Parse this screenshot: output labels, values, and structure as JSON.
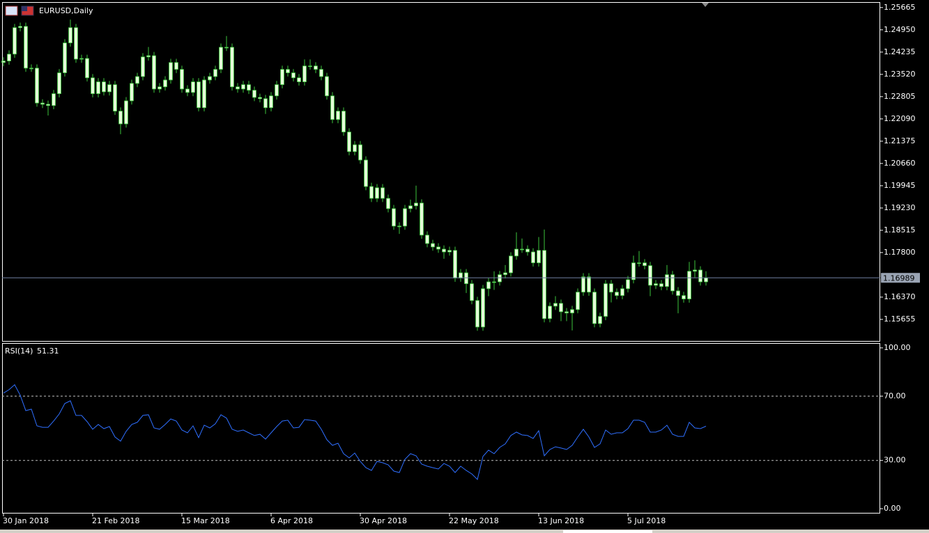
{
  "chart_data": [
    {
      "type": "candlestick",
      "title": "EURUSD,Daily",
      "color": "#3cc43c",
      "body_color": "#e4ffd8",
      "xlim": [
        -0.25,
        157.25
      ],
      "xticks": [
        {
          "value": 0,
          "label": "30 Jan 2018"
        },
        {
          "value": 16,
          "label": "21 Feb 2018"
        },
        {
          "value": 32,
          "label": "15 Mar 2018"
        },
        {
          "value": 48,
          "label": "6 Apr 2018"
        },
        {
          "value": 64,
          "label": "30 Apr 2018"
        },
        {
          "value": 80,
          "label": "22 May 2018"
        },
        {
          "value": 96,
          "label": "13 Jun 2018"
        },
        {
          "value": 112,
          "label": "5 Jul 2018"
        }
      ],
      "ylim": [
        1.1494,
        1.2584
      ],
      "yticks": [
        1.25665,
        {
          "value": 1.2495,
          "label": "1.24950"
        },
        1.24235,
        {
          "value": 1.2352,
          "label": "1.23520"
        },
        1.22805,
        {
          "value": 1.2209,
          "label": "1.22090"
        },
        1.21375,
        {
          "value": 1.2066,
          "label": "1.20660"
        },
        1.19945,
        {
          "value": 1.1923,
          "label": "1.19230"
        },
        1.18515,
        {
          "value": 1.178,
          "label": "1.17800"
        },
        {
          "value": 1.1637,
          "label": "1.16370"
        },
        1.15655
      ],
      "open": [
        1.239,
        1.2395,
        1.2417,
        1.2502,
        1.2506,
        1.2372,
        1.2372,
        1.226,
        1.2256,
        1.2252,
        1.229,
        1.2357,
        1.2453,
        1.2502,
        1.2401,
        1.2403,
        1.2341,
        1.229,
        1.2328,
        1.2296,
        1.2319,
        1.2234,
        1.2193,
        1.2267,
        1.2323,
        1.2345,
        1.2408,
        1.2412,
        1.2305,
        1.2312,
        1.2334,
        1.239,
        1.2368,
        1.2305,
        1.2294,
        1.2328,
        1.2245,
        1.2334,
        1.2345,
        1.2368,
        1.2439,
        1.2439,
        1.2312,
        1.2305,
        1.2319,
        1.2301,
        1.2278,
        1.2274,
        1.2245,
        1.2283,
        1.2319,
        1.2368,
        1.2357,
        1.2341,
        1.2328,
        1.2379,
        1.2379,
        1.2368,
        1.2345,
        1.2283,
        1.2207,
        1.2234,
        1.2167,
        1.2104,
        1.2126,
        1.2077,
        1.1992,
        1.1954,
        1.1988,
        1.1954,
        1.1921,
        1.1865,
        1.1865,
        1.1921,
        1.193,
        1.1939,
        1.1836,
        1.1809,
        1.1798,
        1.1791,
        1.1782,
        1.1787,
        1.1698,
        1.1715,
        1.168,
        1.1626,
        1.1541,
        1.1664,
        1.1686,
        1.1686,
        1.1709,
        1.1715,
        1.1769,
        1.1791,
        1.1791,
        1.1782,
        1.1747,
        1.1787,
        1.1568,
        1.1608,
        1.1617,
        1.159,
        1.1586,
        1.1597,
        1.1653,
        1.1702,
        1.1653,
        1.1552,
        1.1575,
        1.168,
        1.1653,
        1.1642,
        1.1664,
        1.1693,
        1.1747,
        1.1747,
        1.1738,
        1.1675,
        1.168,
        1.1671,
        1.1709,
        1.1657,
        1.1642,
        1.1631,
        1.172,
        1.1724,
        1.1686
      ],
      "high": [
        1.2407,
        1.2429,
        1.2514,
        1.2518,
        1.2518,
        1.2384,
        1.2384,
        1.2272,
        1.2268,
        1.2302,
        1.2369,
        1.2465,
        1.2528,
        1.2514,
        1.2415,
        1.2415,
        1.2353,
        1.234,
        1.234,
        1.2331,
        1.2331,
        1.2246,
        1.2279,
        1.2335,
        1.2357,
        1.242,
        1.244,
        1.2424,
        1.2324,
        1.2346,
        1.2402,
        1.2402,
        1.238,
        1.2317,
        1.234,
        1.234,
        1.2346,
        1.2357,
        1.238,
        1.2451,
        1.2475,
        1.2451,
        1.2324,
        1.2331,
        1.2331,
        1.2313,
        1.229,
        1.2286,
        1.2295,
        1.2331,
        1.238,
        1.238,
        1.2369,
        1.2353,
        1.24,
        1.24,
        1.2391,
        1.238,
        1.2357,
        1.2295,
        1.2246,
        1.2246,
        1.2179,
        1.2138,
        1.2138,
        1.2089,
        1.2004,
        1.2,
        1.2,
        1.1966,
        1.1933,
        1.1877,
        1.1933,
        1.195,
        1.1995,
        1.1951,
        1.1848,
        1.1821,
        1.181,
        1.1803,
        1.1799,
        1.1799,
        1.1727,
        1.1727,
        1.1692,
        1.1638,
        1.1676,
        1.1698,
        1.172,
        1.1721,
        1.174,
        1.1781,
        1.1845,
        1.1825,
        1.1803,
        1.1794,
        1.183,
        1.1854,
        1.162,
        1.164,
        1.1629,
        1.1602,
        1.1609,
        1.1665,
        1.1714,
        1.1714,
        1.1665,
        1.1587,
        1.1692,
        1.1692,
        1.1665,
        1.1676,
        1.1705,
        1.177,
        1.1785,
        1.1759,
        1.175,
        1.1692,
        1.1692,
        1.174,
        1.1721,
        1.1669,
        1.1654,
        1.175,
        1.1755,
        1.1736,
        1.172
      ],
      "low": [
        1.2378,
        1.2383,
        1.2405,
        1.249,
        1.236,
        1.236,
        1.2248,
        1.2244,
        1.222,
        1.224,
        1.2278,
        1.2345,
        1.2441,
        1.2389,
        1.2389,
        1.2329,
        1.2278,
        1.2278,
        1.2284,
        1.2284,
        1.2222,
        1.216,
        1.2181,
        1.2255,
        1.2311,
        1.2333,
        1.2396,
        1.2293,
        1.2293,
        1.23,
        1.2322,
        1.2356,
        1.2293,
        1.2282,
        1.2282,
        1.2233,
        1.2233,
        1.2322,
        1.2333,
        1.2356,
        1.2427,
        1.23,
        1.2293,
        1.2293,
        1.2289,
        1.2266,
        1.2262,
        1.2225,
        1.2233,
        1.2271,
        1.2307,
        1.2345,
        1.2329,
        1.2316,
        1.2316,
        1.2367,
        1.2356,
        1.2333,
        1.2271,
        1.2195,
        1.2195,
        1.2155,
        1.2092,
        1.2092,
        1.2065,
        1.198,
        1.1942,
        1.1942,
        1.1942,
        1.1909,
        1.1853,
        1.184,
        1.1853,
        1.1909,
        1.1918,
        1.1824,
        1.1797,
        1.1786,
        1.1779,
        1.176,
        1.177,
        1.1686,
        1.1686,
        1.165,
        1.1614,
        1.1529,
        1.1529,
        1.164,
        1.166,
        1.1674,
        1.1697,
        1.1703,
        1.1757,
        1.1779,
        1.177,
        1.1735,
        1.1735,
        1.1556,
        1.1556,
        1.1596,
        1.156,
        1.156,
        1.153,
        1.1585,
        1.1641,
        1.1641,
        1.154,
        1.154,
        1.1563,
        1.162,
        1.163,
        1.163,
        1.1652,
        1.1681,
        1.1735,
        1.1726,
        1.164,
        1.1663,
        1.1659,
        1.1659,
        1.1645,
        1.1585,
        1.1619,
        1.1619,
        1.17,
        1.1674,
        1.1674
      ],
      "close": [
        1.2395,
        1.2417,
        1.2502,
        1.2506,
        1.2372,
        1.2372,
        1.226,
        1.2256,
        1.2252,
        1.229,
        1.2357,
        1.2453,
        1.2502,
        1.2401,
        1.2403,
        1.2341,
        1.229,
        1.2328,
        1.2296,
        1.2319,
        1.2234,
        1.2193,
        1.2267,
        1.2323,
        1.2345,
        1.2408,
        1.2412,
        1.2305,
        1.2312,
        1.2334,
        1.239,
        1.2368,
        1.2305,
        1.2294,
        1.2328,
        1.2245,
        1.2334,
        1.2345,
        1.2368,
        1.2439,
        1.2439,
        1.2312,
        1.2305,
        1.2319,
        1.2301,
        1.2278,
        1.2274,
        1.2245,
        1.2283,
        1.2319,
        1.2368,
        1.2357,
        1.2341,
        1.2328,
        1.2379,
        1.2379,
        1.2368,
        1.2345,
        1.2283,
        1.2207,
        1.2234,
        1.2167,
        1.2104,
        1.2126,
        1.2077,
        1.1992,
        1.1954,
        1.1988,
        1.1954,
        1.1921,
        1.1865,
        1.1865,
        1.1921,
        1.193,
        1.1939,
        1.1836,
        1.1809,
        1.1798,
        1.1791,
        1.1782,
        1.1787,
        1.1698,
        1.1715,
        1.168,
        1.1626,
        1.1541,
        1.1664,
        1.1686,
        1.1686,
        1.1709,
        1.1715,
        1.1769,
        1.1791,
        1.1791,
        1.1782,
        1.1747,
        1.1787,
        1.1568,
        1.1608,
        1.1617,
        1.159,
        1.1586,
        1.1597,
        1.1653,
        1.1702,
        1.1653,
        1.1552,
        1.1575,
        1.168,
        1.1653,
        1.1642,
        1.1664,
        1.1693,
        1.1747,
        1.1747,
        1.1738,
        1.1675,
        1.168,
        1.1671,
        1.1709,
        1.1657,
        1.1642,
        1.1631,
        1.172,
        1.1724,
        1.1686,
        1.16989
      ]
    },
    {
      "type": "line",
      "title": "RSI(14)",
      "color": "#2f6fff",
      "ylim": [
        -3,
        103
      ],
      "yticks": [
        {
          "value": 100,
          "label": "100.00"
        },
        {
          "value": 70,
          "label": "70.00"
        },
        {
          "value": 30,
          "label": "30.00"
        },
        {
          "value": 0,
          "label": "0.00"
        }
      ],
      "values": [
        71.9,
        74.0,
        77.1,
        70.6,
        61.0,
        61.9,
        51.5,
        50.6,
        50.6,
        54.5,
        58.9,
        65.4,
        67.1,
        58.0,
        58.0,
        54.1,
        49.4,
        52.4,
        49.8,
        51.1,
        44.6,
        42.0,
        48.1,
        52.4,
        53.7,
        58.0,
        58.4,
        50.2,
        49.4,
        52.4,
        55.8,
        54.5,
        48.9,
        47.2,
        51.5,
        44.2,
        51.9,
        50.2,
        52.8,
        58.4,
        56.3,
        49.4,
        48.1,
        48.9,
        47.2,
        45.5,
        46.3,
        43.3,
        47.2,
        51.1,
        54.5,
        55.0,
        50.2,
        50.6,
        55.4,
        55.0,
        54.5,
        49.4,
        42.9,
        39.4,
        40.7,
        34.2,
        31.6,
        34.6,
        29.4,
        25.5,
        23.8,
        29.4,
        28.6,
        27.3,
        23.4,
        22.5,
        30.7,
        34.2,
        32.9,
        27.7,
        26.4,
        25.5,
        24.7,
        28.1,
        26.4,
        22.5,
        26.4,
        23.8,
        21.6,
        18.2,
        32.5,
        36.4,
        34.2,
        38.1,
        40.3,
        45.5,
        47.6,
        45.9,
        45.5,
        43.7,
        48.5,
        32.9,
        36.8,
        38.5,
        37.7,
        36.8,
        39.4,
        44.6,
        49.4,
        44.6,
        38.1,
        40.3,
        48.9,
        46.3,
        47.2,
        47.2,
        49.8,
        55.0,
        55.0,
        53.7,
        47.6,
        47.6,
        48.9,
        51.9,
        46.3,
        45.0,
        45.0,
        53.7,
        50.2,
        49.8,
        51.31
      ]
    }
  ]
}
